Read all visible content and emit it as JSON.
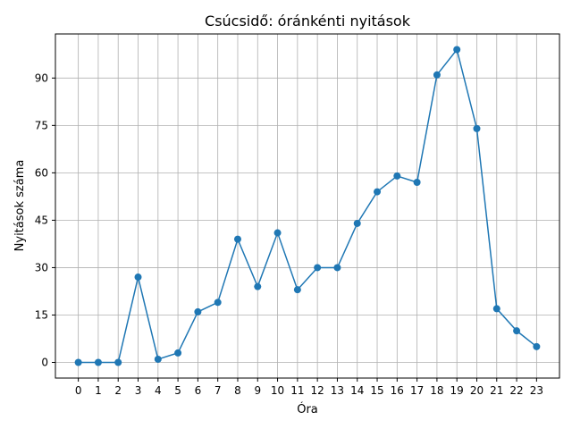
{
  "chart_data": {
    "type": "line",
    "title": "Csúcsidő: óránkénti nyitások",
    "xlabel": "Óra",
    "ylabel": "Nyitások száma",
    "x": [
      0,
      1,
      2,
      3,
      4,
      5,
      6,
      7,
      8,
      9,
      10,
      11,
      12,
      13,
      14,
      15,
      16,
      17,
      18,
      19,
      20,
      21,
      22,
      23
    ],
    "values": [
      0,
      0,
      0,
      27,
      1,
      3,
      16,
      19,
      39,
      24,
      41,
      23,
      30,
      30,
      44,
      54,
      59,
      57,
      91,
      99,
      74,
      17,
      10,
      5
    ],
    "xticks": [
      0,
      1,
      2,
      3,
      4,
      5,
      6,
      7,
      8,
      9,
      10,
      11,
      12,
      13,
      14,
      15,
      16,
      17,
      18,
      19,
      20,
      21,
      22,
      23
    ],
    "yticks": [
      0,
      15,
      30,
      45,
      60,
      75,
      90
    ],
    "xlim": [
      -1.15,
      24.15
    ],
    "ylim": [
      -4.95,
      103.95
    ],
    "grid": true,
    "marker": "circle",
    "line_color": "#1f77b4"
  }
}
